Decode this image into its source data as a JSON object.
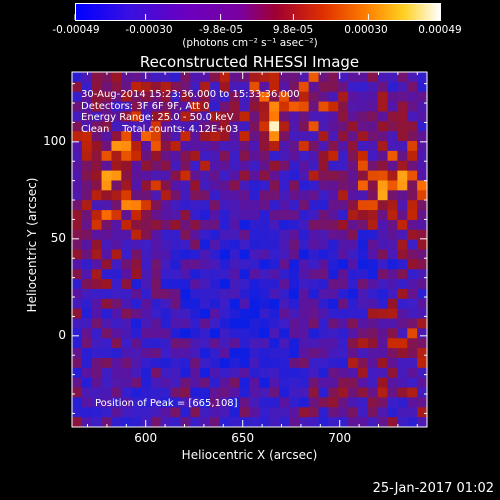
{
  "chart_data": {
    "type": "heatmap",
    "title": "Reconstructed RHESSI Image",
    "xlabel": "Heliocentric X (arcsec)",
    "ylabel": "Heliocentric Y (arcsec)",
    "xlim": [
      562,
      745
    ],
    "ylim": [
      -47,
      136
    ],
    "x_ticks": [
      600,
      650,
      700
    ],
    "y_ticks": [
      0,
      50,
      100
    ],
    "peak": [
      665,
      108
    ],
    "colorbar": {
      "ticks": [
        "-0.00049",
        "-0.00030",
        "-9.8e-05",
        "9.8e-05",
        "0.00030",
        "0.00049"
      ],
      "tick_values": [
        -0.00049,
        -0.0003,
        -9.8e-05,
        9.8e-05,
        0.0003,
        0.00049
      ],
      "range": [
        -0.00049,
        0.00049
      ],
      "unit_label": "(photons cm⁻² s⁻¹ asec⁻²)",
      "colors": [
        "#0000ff",
        "#7a00c8",
        "#d03000",
        "#ff9000",
        "#ffff60",
        "#ffffff"
      ]
    },
    "annotations": {
      "time": "30-Aug-2014 15:23:36.000 to 15:33:36.000",
      "detectors": "Detectors: 3F 6F 9F, Att 0",
      "energy": "Energy Range: 25.0 - 50.0 keV",
      "clean": "Clean    Total counts: 4.12E+03",
      "peak": "Position of Peak = [665,108]"
    }
  },
  "footer": {
    "date": "25-Jan-2017 01:02"
  }
}
